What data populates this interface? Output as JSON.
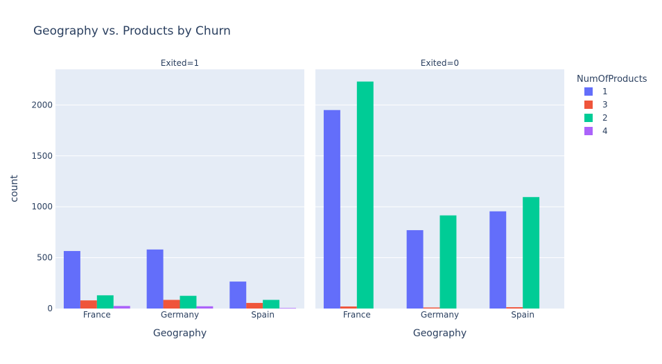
{
  "chart_data": {
    "type": "bar",
    "title": "Geography vs. Products by Churn",
    "ylabel": "count",
    "ylim": [
      0,
      2350
    ],
    "yticks": [
      0,
      500,
      1000,
      1500,
      2000
    ],
    "grid": true,
    "legend": {
      "title": "NumOfProducts",
      "placement": "right"
    },
    "categories": [
      "France",
      "Germany",
      "Spain"
    ],
    "series": [
      {
        "name": "1",
        "color": "#636efa"
      },
      {
        "name": "3",
        "color": "#ef553b"
      },
      {
        "name": "2",
        "color": "#00cc96"
      },
      {
        "name": "4",
        "color": "#ab63fa"
      }
    ],
    "facets": [
      {
        "label": "Exited=1",
        "xlabel": "Geography",
        "values": {
          "1": [
            565,
            580,
            265
          ],
          "3": [
            80,
            85,
            55
          ],
          "2": [
            130,
            125,
            85
          ],
          "4": [
            25,
            22,
            5
          ]
        }
      },
      {
        "label": "Exited=0",
        "xlabel": "Geography",
        "values": {
          "1": [
            1950,
            770,
            955
          ],
          "3": [
            20,
            10,
            13
          ],
          "2": [
            2230,
            915,
            1095
          ],
          "4": [
            0,
            0,
            0
          ]
        }
      }
    ]
  }
}
